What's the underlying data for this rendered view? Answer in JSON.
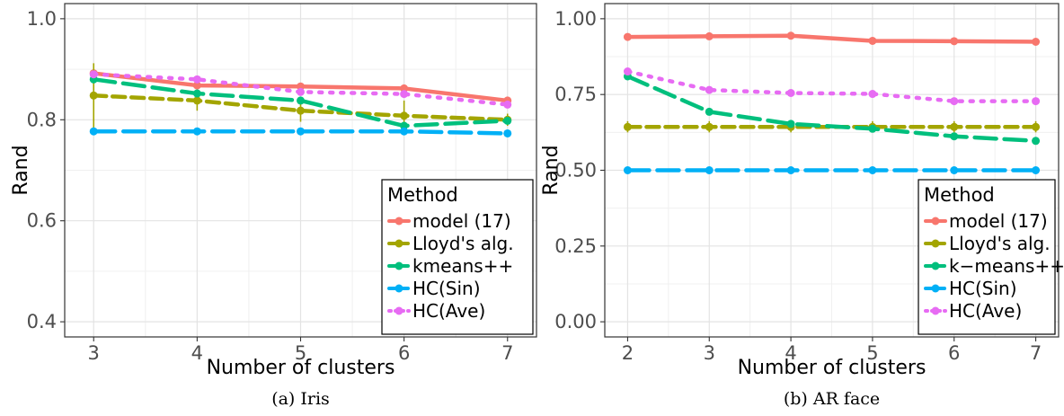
{
  "chart_data": [
    {
      "type": "line",
      "caption": "(a) Iris",
      "xlabel": "Number of clusters",
      "ylabel": "Rand",
      "x": [
        3,
        4,
        5,
        6,
        7
      ],
      "xlim": [
        2.72,
        7.28
      ],
      "ylim": [
        0.37,
        1.03
      ],
      "yticks": [
        0.4,
        0.6,
        0.8,
        1.0
      ],
      "ytick_labels": [
        "0.4",
        "0.6",
        "0.8",
        "1.0"
      ],
      "grid": true,
      "legend": {
        "title": "Method",
        "placement": "bottom-right",
        "entries": [
          "model (17)",
          "Lloyd's alg.",
          "kmeans++",
          "HC(Sin)",
          "HC(Ave)"
        ]
      },
      "series": [
        {
          "name": "model (17)",
          "color": "#F8766D",
          "dash": "solid",
          "values": [
            0.892,
            0.868,
            0.866,
            0.862,
            0.838
          ]
        },
        {
          "name": "Lloyd's alg.",
          "color": "#A3A500",
          "dash": "dashed",
          "values": [
            0.848,
            0.838,
            0.818,
            0.808,
            0.8
          ],
          "err": [
            [
              0.782,
              0.912
            ],
            [
              0.818,
              0.858
            ],
            [
              0.796,
              0.842
            ],
            [
              0.788,
              0.838
            ],
            [
              0.788,
              0.812
            ]
          ]
        },
        {
          "name": "kmeans++",
          "color": "#00BF7D",
          "dash": "longdash",
          "values": [
            0.88,
            0.852,
            0.838,
            0.788,
            0.798
          ]
        },
        {
          "name": "HC(Sin)",
          "color": "#00B0F6",
          "dash": "longdash",
          "values": [
            0.777,
            0.777,
            0.777,
            0.777,
            0.773
          ]
        },
        {
          "name": "HC(Ave)",
          "color": "#E76BF3",
          "dash": "dotted",
          "values": [
            0.89,
            0.88,
            0.855,
            0.851,
            0.83
          ]
        }
      ]
    },
    {
      "type": "line",
      "caption": "(b) AR face",
      "xlabel": "Number of clusters",
      "ylabel": "Rand",
      "x": [
        2,
        3,
        4,
        5,
        6,
        7
      ],
      "xlim": [
        1.72,
        7.28
      ],
      "ylim": [
        -0.05,
        1.05
      ],
      "yticks": [
        0.0,
        0.25,
        0.5,
        0.75,
        1.0
      ],
      "ytick_labels": [
        "0.00",
        "0.25",
        "0.50",
        "0.75",
        "1.00"
      ],
      "grid": true,
      "legend": {
        "title": "Method",
        "placement": "bottom-right",
        "entries": [
          "model (17)",
          "Lloyd's alg.",
          "k−means++",
          "HC(Sin)",
          "HC(Ave)"
        ]
      },
      "series": [
        {
          "name": "model (17)",
          "color": "#F8766D",
          "dash": "solid",
          "values": [
            0.94,
            0.942,
            0.944,
            0.927,
            0.926,
            0.924
          ]
        },
        {
          "name": "Lloyd's alg.",
          "color": "#A3A500",
          "dash": "dashed",
          "values": [
            0.643,
            0.643,
            0.643,
            0.643,
            0.643,
            0.643
          ],
          "err": [
            [
              0.625,
              0.662
            ],
            [
              0.625,
              0.662
            ],
            [
              0.625,
              0.662
            ],
            [
              0.625,
              0.662
            ],
            [
              0.625,
              0.662
            ],
            [
              0.625,
              0.662
            ]
          ]
        },
        {
          "name": "k−means++",
          "color": "#00BF7D",
          "dash": "longdash",
          "values": [
            0.81,
            0.693,
            0.653,
            0.637,
            0.612,
            0.597
          ]
        },
        {
          "name": "HC(Sin)",
          "color": "#00B0F6",
          "dash": "longdash",
          "values": [
            0.5,
            0.5,
            0.5,
            0.5,
            0.5,
            0.5
          ]
        },
        {
          "name": "HC(Ave)",
          "color": "#E76BF3",
          "dash": "dotted",
          "values": [
            0.826,
            0.765,
            0.755,
            0.752,
            0.728,
            0.728
          ]
        }
      ]
    }
  ]
}
